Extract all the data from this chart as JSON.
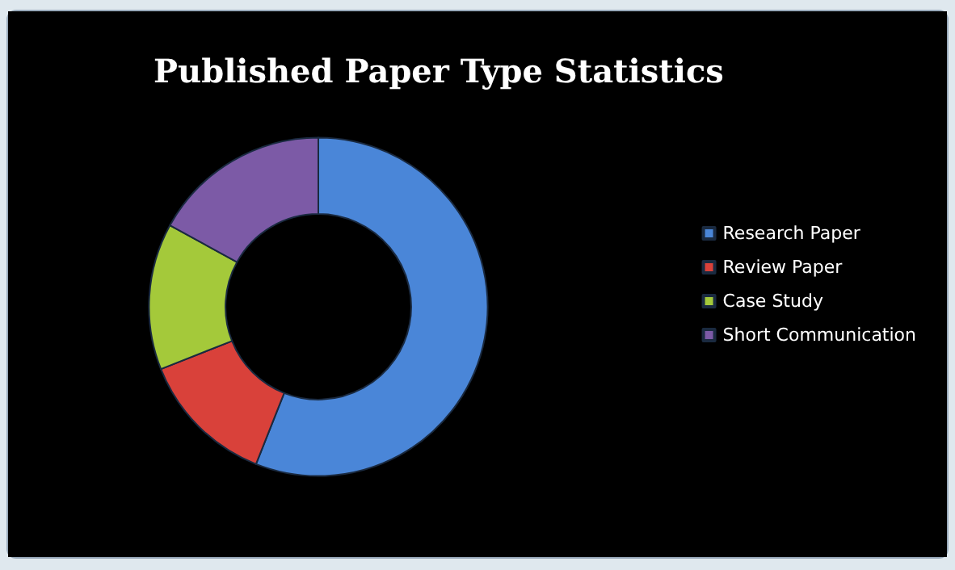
{
  "chart_data": {
    "type": "donut",
    "title": "Published Paper Type Statistics",
    "categories": [
      "Research Paper",
      "Review Paper",
      "Case Study",
      "Short Communication"
    ],
    "values": [
      56,
      13,
      14,
      17
    ],
    "colors": [
      "#4a86d8",
      "#d9413a",
      "#a4c93a",
      "#7c5aa6"
    ],
    "legend": "right"
  }
}
